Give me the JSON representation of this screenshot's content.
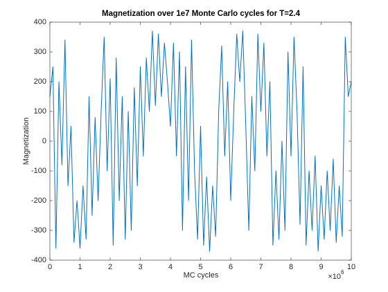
{
  "chart_data": {
    "type": "line",
    "title": "Magnetization over 1e7 Monte Carlo cycles for T=2.4",
    "x_label": "MC cycles",
    "y_label": "Magnetization",
    "x_multiplier": {
      "base": "×10",
      "exponent": "6"
    },
    "color": "#0072bd",
    "x": [
      0,
      0.1,
      0.2,
      0.3,
      0.4,
      0.5,
      0.6,
      0.7,
      0.8,
      0.9,
      1,
      1.1,
      1.2,
      1.3,
      1.4,
      1.5,
      1.6,
      1.7,
      1.8,
      1.9,
      2,
      2.1,
      2.2,
      2.3,
      2.4,
      2.5,
      2.6,
      2.7,
      2.8,
      2.9,
      3,
      3.1,
      3.2,
      3.3,
      3.4,
      3.5,
      3.6,
      3.7,
      3.8,
      3.9,
      4,
      4.1,
      4.2,
      4.3,
      4.4,
      4.5,
      4.6,
      4.7,
      4.8,
      4.9,
      5,
      5.1,
      5.2,
      5.3,
      5.4,
      5.5,
      5.6,
      5.7,
      5.8,
      5.9,
      6,
      6.1,
      6.2,
      6.3,
      6.4,
      6.5,
      6.6,
      6.7,
      6.8,
      6.9,
      7,
      7.1,
      7.2,
      7.3,
      7.4,
      7.5,
      7.6,
      7.7,
      7.8,
      7.9,
      8,
      8.1,
      8.2,
      8.3,
      8.4,
      8.5,
      8.6,
      8.7,
      8.8,
      8.9,
      9,
      9.1,
      9.2,
      9.3,
      9.4,
      9.5,
      9.6,
      9.7,
      9.8,
      9.9,
      10
    ],
    "values": [
      150,
      250,
      -360,
      200,
      -80,
      340,
      -150,
      50,
      -340,
      -200,
      -360,
      -150,
      -330,
      150,
      -250,
      80,
      -200,
      100,
      350,
      -100,
      210,
      -350,
      280,
      -200,
      150,
      -330,
      100,
      -300,
      180,
      -150,
      250,
      -50,
      280,
      100,
      370,
      120,
      360,
      150,
      330,
      200,
      50,
      330,
      -50,
      300,
      -300,
      250,
      -200,
      340,
      -100,
      -330,
      50,
      -350,
      -120,
      -370,
      -150,
      -320,
      100,
      320,
      -50,
      200,
      -200,
      100,
      360,
      200,
      370,
      50,
      -300,
      150,
      -100,
      360,
      100,
      330,
      -50,
      200,
      -350,
      -100,
      -330,
      0,
      -300,
      300,
      -50,
      350,
      100,
      -280,
      250,
      -350,
      -100,
      -300,
      -50,
      -370,
      -150,
      -330,
      -100,
      -300,
      -60,
      -340,
      -150,
      -320,
      350,
      150,
      200
    ],
    "xlim": [
      0,
      10
    ],
    "ylim": [
      -400,
      400
    ],
    "xticks": [
      0,
      1,
      2,
      3,
      4,
      5,
      6,
      7,
      8,
      9,
      10
    ],
    "yticks": [
      -400,
      -300,
      -200,
      -100,
      0,
      100,
      200,
      300,
      400
    ]
  }
}
